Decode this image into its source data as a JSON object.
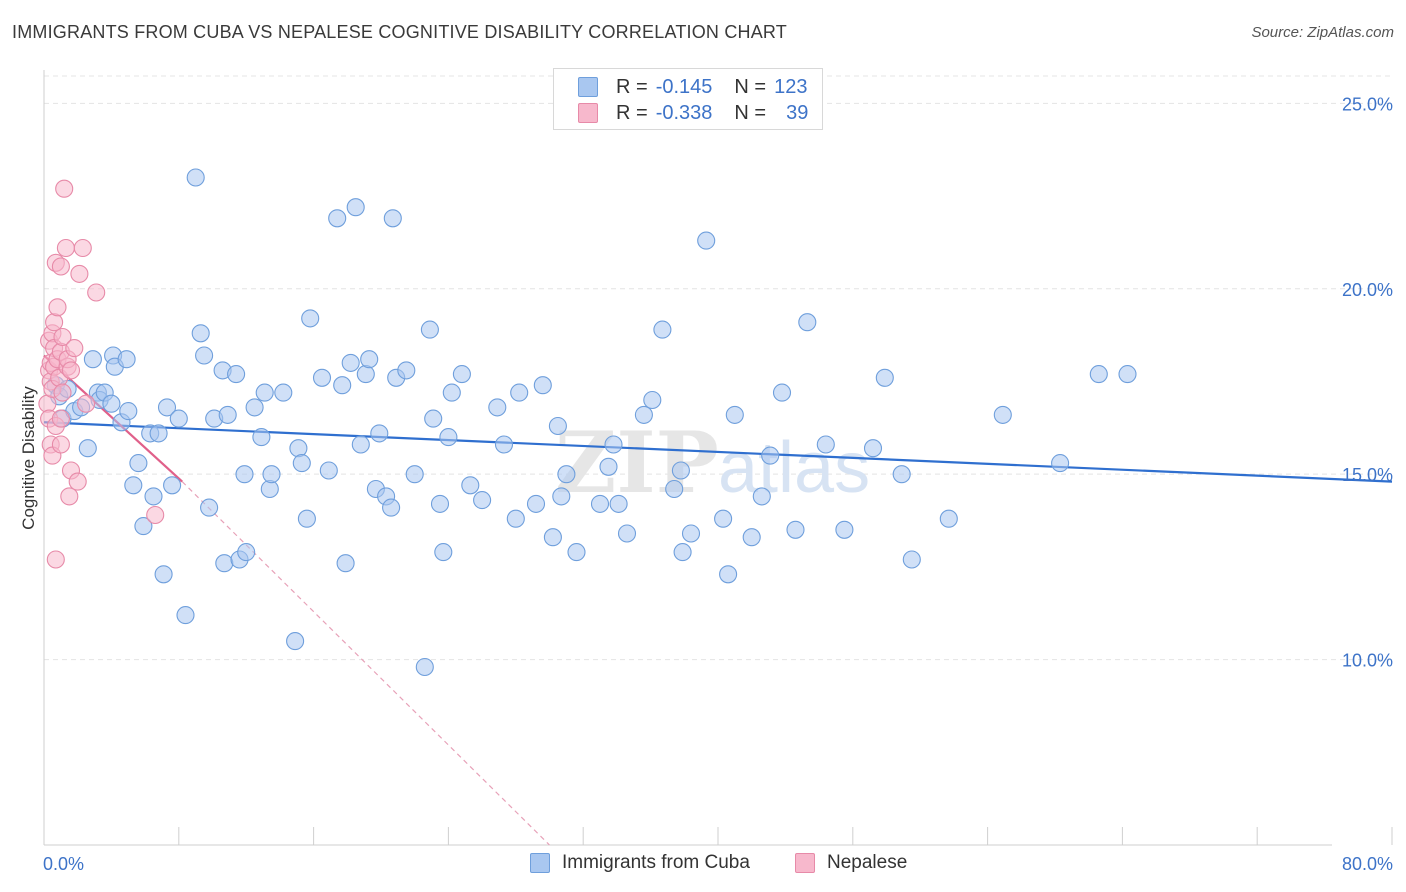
{
  "title": "IMMIGRANTS FROM CUBA VS NEPALESE COGNITIVE DISABILITY CORRELATION CHART",
  "source": "Source: ZipAtlas.com",
  "watermark": {
    "zip": "ZIP",
    "atlas": "atlas"
  },
  "legend_top": {
    "rows": [
      {
        "r_label": "R =",
        "r_value": "-0.145",
        "n_label": "N =",
        "n_value": "123"
      },
      {
        "r_label": "R =",
        "r_value": "-0.338",
        "n_label": "N =",
        "n_value": "39"
      }
    ]
  },
  "colors": {
    "cuba_fill": "#a9c7f0",
    "cuba_stroke": "#6f9fdc",
    "cuba_line": "#2f6fcf",
    "nepal_fill": "#f7b8cc",
    "nepal_stroke": "#e78aa8",
    "nepal_line": "#e0608a",
    "axis_text": "#3d73c8",
    "grid": "#e4e4e4"
  },
  "chart_data": {
    "type": "scatter",
    "title": "IMMIGRANTS FROM CUBA VS NEPALESE COGNITIVE DISABILITY CORRELATION CHART",
    "xlabel": "",
    "ylabel": "Cognitive Disability",
    "xlim": [
      0,
      80
    ],
    "ylim": [
      5,
      25.9
    ],
    "x_tick_labels": [
      "0.0%",
      "80.0%"
    ],
    "y_ticks": [
      10,
      15,
      20,
      25
    ],
    "y_tick_labels": [
      "10.0%",
      "15.0%",
      "20.0%",
      "25.0%"
    ],
    "grid": true,
    "legend_position": "bottom",
    "series": [
      {
        "name": "Immigrants from Cuba",
        "trend": {
          "x": [
            0,
            80
          ],
          "y": [
            16.4,
            14.8
          ]
        },
        "points": [
          [
            0.7,
            17.4
          ],
          [
            0.9,
            17.1
          ],
          [
            1.1,
            16.5
          ],
          [
            1.4,
            17.3
          ],
          [
            1.8,
            16.7
          ],
          [
            2.2,
            16.8
          ],
          [
            2.6,
            15.7
          ],
          [
            2.9,
            18.1
          ],
          [
            3.2,
            17.2
          ],
          [
            3.3,
            17.0
          ],
          [
            3.6,
            17.2
          ],
          [
            4.0,
            16.9
          ],
          [
            4.1,
            18.2
          ],
          [
            4.2,
            17.9
          ],
          [
            4.6,
            16.4
          ],
          [
            4.9,
            18.1
          ],
          [
            5.0,
            16.7
          ],
          [
            5.3,
            14.7
          ],
          [
            5.6,
            15.3
          ],
          [
            5.9,
            13.6
          ],
          [
            6.3,
            16.1
          ],
          [
            6.5,
            14.4
          ],
          [
            6.8,
            16.1
          ],
          [
            7.1,
            12.3
          ],
          [
            7.3,
            16.8
          ],
          [
            7.6,
            14.7
          ],
          [
            8.0,
            16.5
          ],
          [
            8.4,
            11.2
          ],
          [
            9.0,
            23.0
          ],
          [
            9.3,
            18.8
          ],
          [
            9.5,
            18.2
          ],
          [
            9.8,
            14.1
          ],
          [
            10.1,
            16.5
          ],
          [
            10.6,
            17.8
          ],
          [
            10.7,
            12.6
          ],
          [
            10.9,
            16.6
          ],
          [
            11.4,
            17.7
          ],
          [
            11.6,
            12.7
          ],
          [
            11.9,
            15.0
          ],
          [
            12.0,
            12.9
          ],
          [
            12.5,
            16.8
          ],
          [
            12.9,
            16.0
          ],
          [
            13.1,
            17.2
          ],
          [
            13.4,
            14.6
          ],
          [
            13.5,
            15.0
          ],
          [
            14.2,
            17.2
          ],
          [
            14.9,
            10.5
          ],
          [
            15.1,
            15.7
          ],
          [
            15.3,
            15.3
          ],
          [
            15.6,
            13.8
          ],
          [
            15.8,
            19.2
          ],
          [
            16.5,
            17.6
          ],
          [
            16.9,
            15.1
          ],
          [
            17.4,
            21.9
          ],
          [
            17.7,
            17.4
          ],
          [
            17.9,
            12.6
          ],
          [
            18.2,
            18.0
          ],
          [
            18.5,
            22.2
          ],
          [
            18.8,
            15.8
          ],
          [
            19.1,
            17.7
          ],
          [
            19.3,
            18.1
          ],
          [
            19.7,
            14.6
          ],
          [
            19.9,
            16.1
          ],
          [
            20.3,
            14.4
          ],
          [
            20.6,
            14.1
          ],
          [
            20.7,
            21.9
          ],
          [
            20.9,
            17.6
          ],
          [
            21.5,
            17.8
          ],
          [
            22.0,
            15.0
          ],
          [
            22.6,
            9.8
          ],
          [
            22.9,
            18.9
          ],
          [
            23.1,
            16.5
          ],
          [
            23.5,
            14.2
          ],
          [
            23.7,
            12.9
          ],
          [
            24.0,
            16.0
          ],
          [
            24.2,
            17.2
          ],
          [
            24.8,
            17.7
          ],
          [
            25.3,
            14.7
          ],
          [
            26.0,
            14.3
          ],
          [
            26.9,
            16.8
          ],
          [
            27.3,
            15.8
          ],
          [
            28.0,
            13.8
          ],
          [
            28.2,
            17.2
          ],
          [
            29.2,
            14.2
          ],
          [
            29.6,
            17.4
          ],
          [
            30.2,
            13.3
          ],
          [
            30.5,
            16.3
          ],
          [
            30.7,
            14.4
          ],
          [
            31.0,
            15.0
          ],
          [
            31.6,
            12.9
          ],
          [
            33.0,
            14.2
          ],
          [
            33.5,
            15.2
          ],
          [
            33.8,
            15.8
          ],
          [
            34.1,
            14.2
          ],
          [
            34.6,
            13.4
          ],
          [
            35.6,
            16.6
          ],
          [
            36.1,
            17.0
          ],
          [
            36.7,
            18.9
          ],
          [
            37.4,
            14.6
          ],
          [
            37.8,
            15.1
          ],
          [
            37.9,
            12.9
          ],
          [
            38.4,
            13.4
          ],
          [
            39.3,
            21.3
          ],
          [
            40.3,
            13.8
          ],
          [
            40.6,
            12.3
          ],
          [
            41.0,
            16.6
          ],
          [
            42.0,
            13.3
          ],
          [
            42.6,
            14.4
          ],
          [
            43.1,
            15.5
          ],
          [
            43.8,
            17.2
          ],
          [
            44.6,
            13.5
          ],
          [
            45.3,
            19.1
          ],
          [
            46.4,
            15.8
          ],
          [
            47.5,
            13.5
          ],
          [
            49.2,
            15.7
          ],
          [
            49.9,
            17.6
          ],
          [
            50.9,
            15.0
          ],
          [
            51.5,
            12.7
          ],
          [
            53.7,
            13.8
          ],
          [
            56.9,
            16.6
          ],
          [
            60.3,
            15.3
          ],
          [
            62.6,
            17.7
          ],
          [
            64.3,
            17.7
          ]
        ]
      },
      {
        "name": "Nepalese",
        "trend": {
          "x": [
            0,
            8.2
          ],
          "y": [
            18.2,
            14.8
          ]
        },
        "trend_extension": {
          "x": [
            8.2,
            30
          ],
          "y": [
            14.8,
            5.0
          ]
        },
        "points": [
          [
            0.2,
            16.9
          ],
          [
            0.3,
            17.8
          ],
          [
            0.3,
            18.6
          ],
          [
            0.3,
            16.5
          ],
          [
            0.4,
            15.8
          ],
          [
            0.4,
            17.5
          ],
          [
            0.4,
            18.0
          ],
          [
            0.5,
            15.5
          ],
          [
            0.5,
            17.3
          ],
          [
            0.5,
            18.8
          ],
          [
            0.6,
            19.1
          ],
          [
            0.6,
            17.9
          ],
          [
            0.6,
            18.4
          ],
          [
            0.7,
            16.3
          ],
          [
            0.7,
            12.7
          ],
          [
            0.7,
            20.7
          ],
          [
            0.8,
            19.5
          ],
          [
            0.8,
            18.1
          ],
          [
            0.9,
            17.6
          ],
          [
            1.0,
            18.3
          ],
          [
            1.0,
            15.8
          ],
          [
            1.0,
            16.5
          ],
          [
            1.0,
            20.6
          ],
          [
            1.1,
            17.2
          ],
          [
            1.1,
            18.7
          ],
          [
            1.2,
            22.7
          ],
          [
            1.3,
            21.1
          ],
          [
            1.4,
            17.9
          ],
          [
            1.4,
            18.1
          ],
          [
            1.5,
            14.4
          ],
          [
            1.6,
            15.1
          ],
          [
            1.6,
            17.8
          ],
          [
            1.8,
            18.4
          ],
          [
            2.0,
            14.8
          ],
          [
            2.1,
            20.4
          ],
          [
            2.3,
            21.1
          ],
          [
            2.5,
            16.9
          ],
          [
            3.1,
            19.9
          ],
          [
            6.6,
            13.9
          ]
        ]
      }
    ]
  },
  "legend_bottom": {
    "items": [
      "Immigrants from Cuba",
      "Nepalese"
    ]
  }
}
